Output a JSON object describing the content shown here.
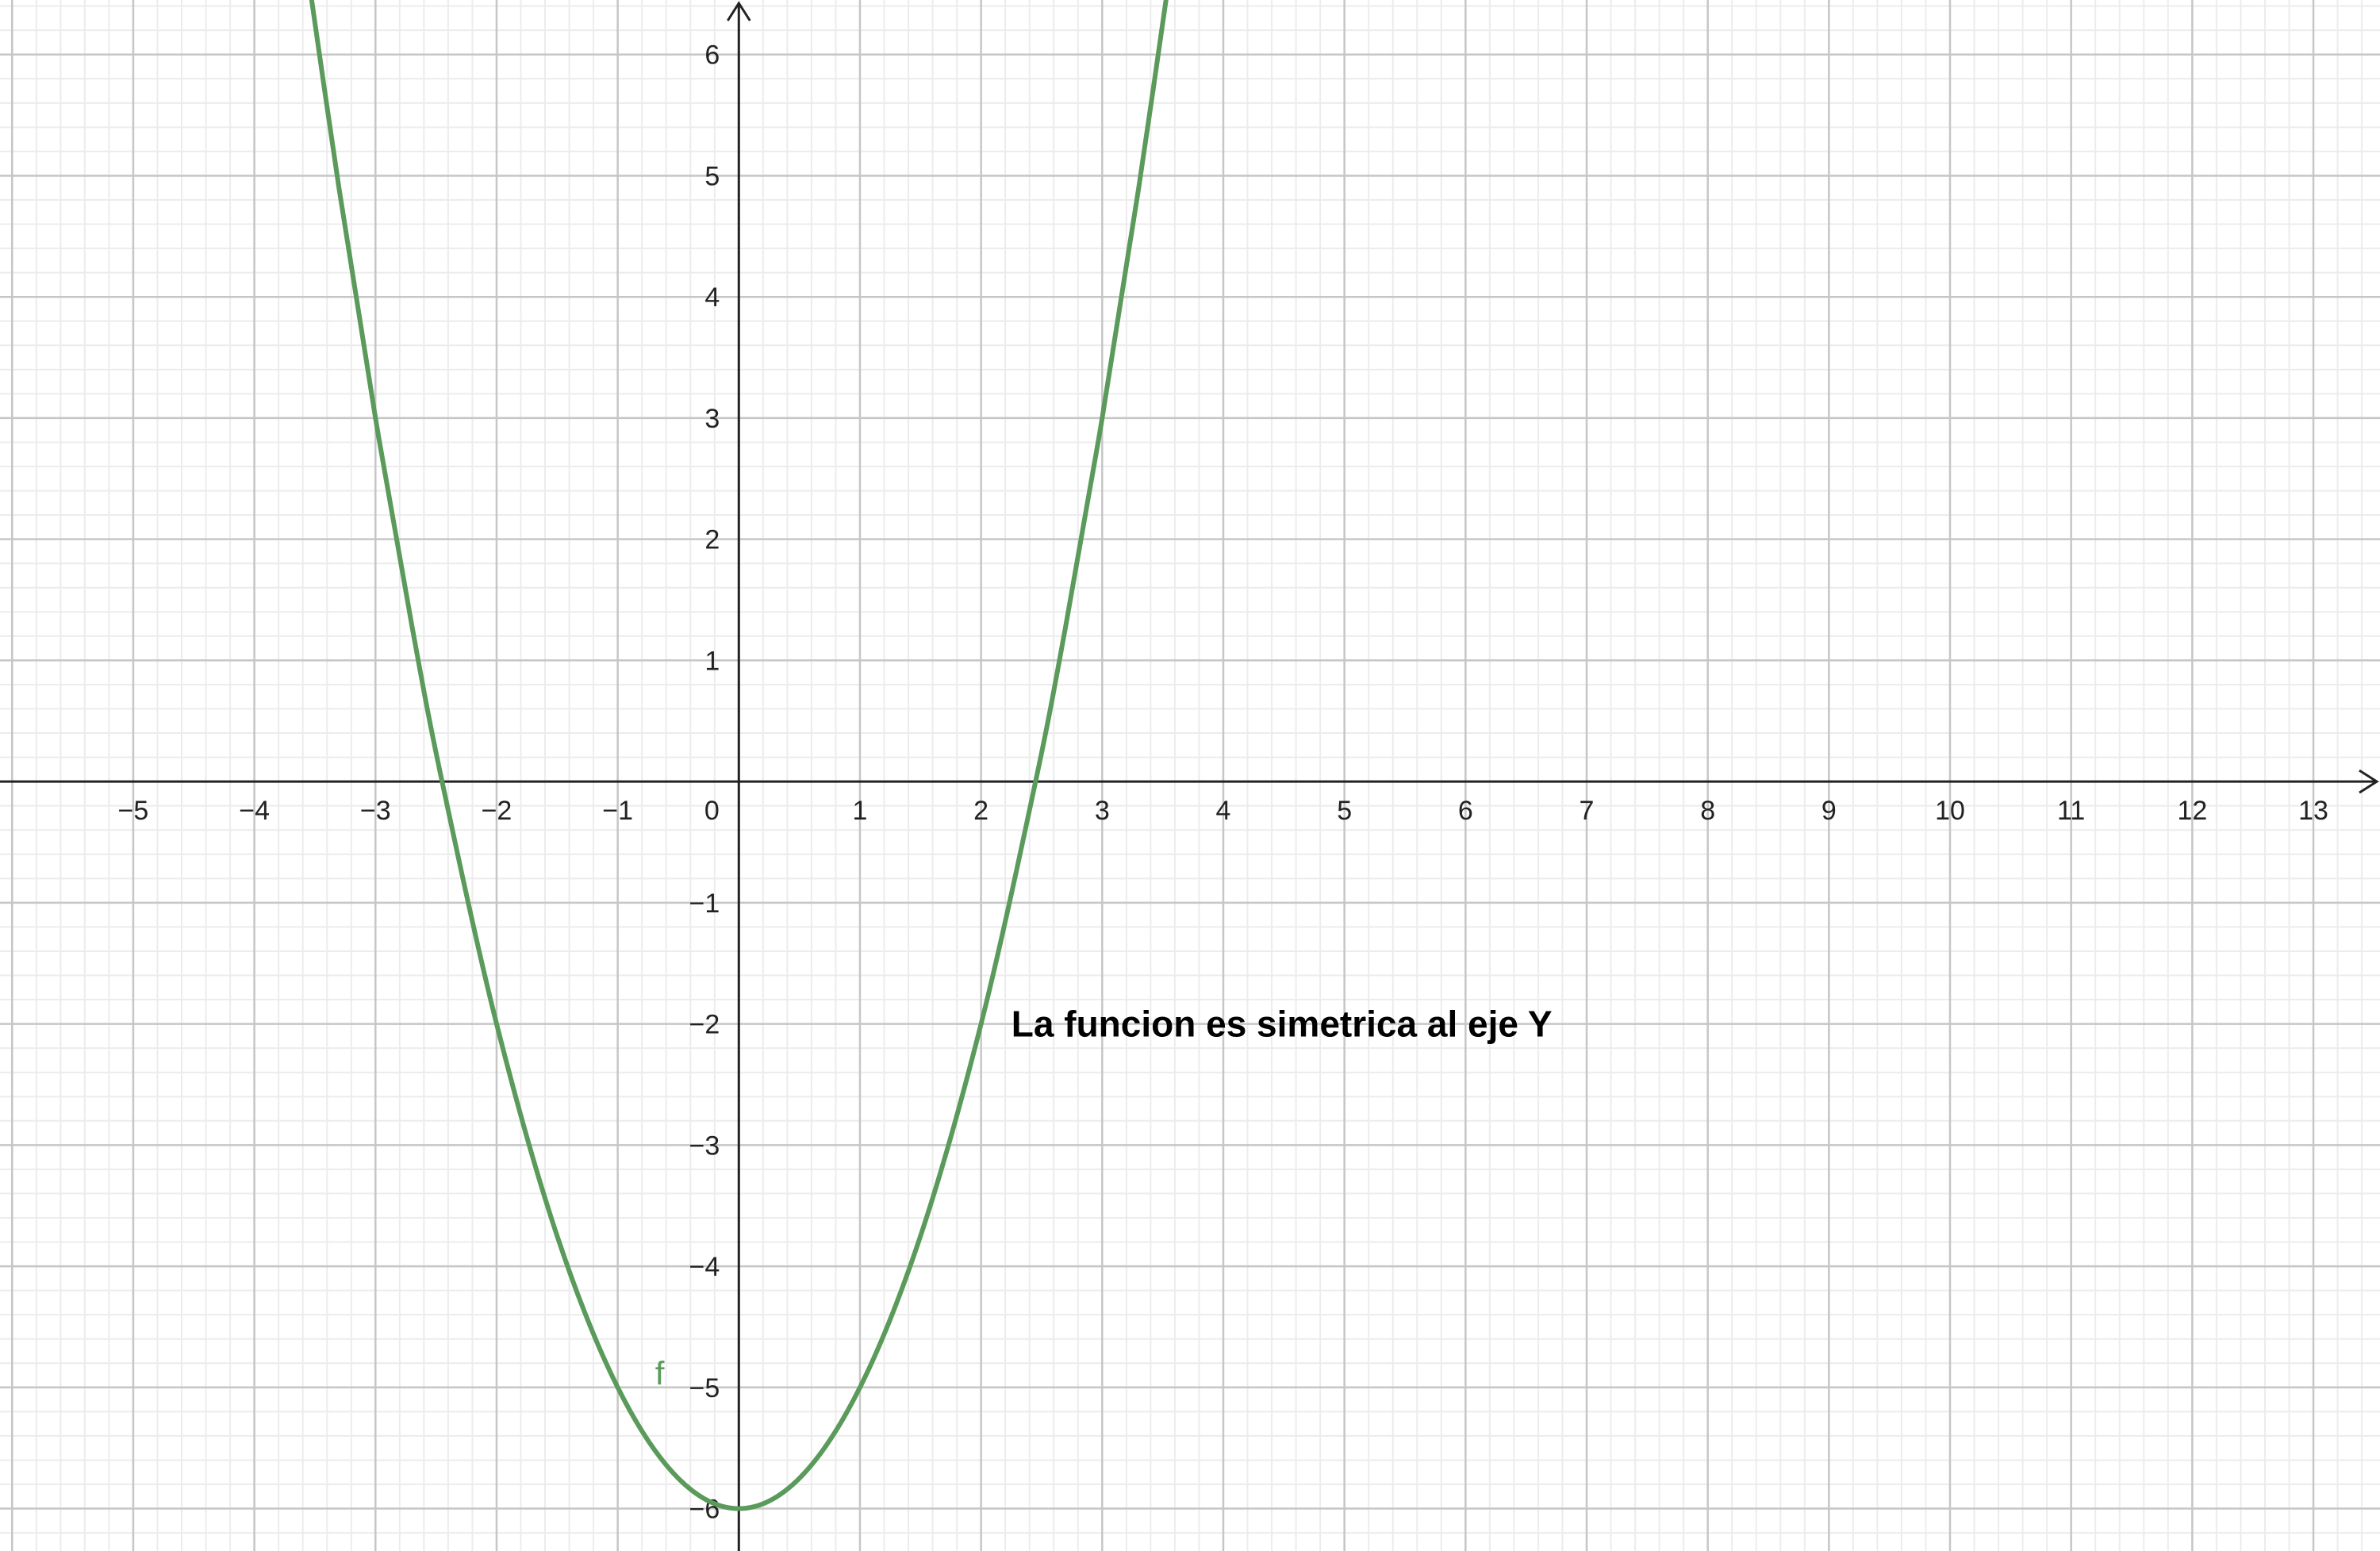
{
  "chart_data": {
    "type": "line",
    "title": "",
    "xlabel": "",
    "ylabel": "",
    "xlim": [
      -6.1,
      13.55
    ],
    "ylim": [
      -6.35,
      6.45
    ],
    "grid": true,
    "x_ticks": [
      -5,
      -4,
      -3,
      -2,
      -1,
      0,
      1,
      2,
      3,
      4,
      5,
      6,
      7,
      8,
      9,
      10,
      11,
      12,
      13
    ],
    "y_ticks": [
      -6,
      -5,
      -4,
      -3,
      -2,
      -1,
      1,
      2,
      3,
      4,
      5,
      6
    ],
    "x_tick_labels": [
      "−5",
      "−4",
      "−3",
      "−2",
      "−1",
      "0",
      "1",
      "2",
      "3",
      "4",
      "5",
      "6",
      "7",
      "8",
      "9",
      "10",
      "11",
      "12",
      "13"
    ],
    "y_tick_labels": [
      "−6",
      "−5",
      "−4",
      "−3",
      "−2",
      "−1",
      "1",
      "2",
      "3",
      "4",
      "5",
      "6"
    ],
    "series": [
      {
        "name": "f",
        "color": "#5a9a5a",
        "x": [
          -3.6,
          -3.3,
          -3,
          -2.7,
          -2.45,
          -2,
          -1.5,
          -1,
          -0.5,
          0,
          0.5,
          1,
          1.5,
          2,
          2.45,
          2.7,
          3,
          3.3,
          3.6
        ],
        "y": [
          6.96,
          4.89,
          3,
          1.29,
          0,
          -2,
          -3.75,
          -5,
          -5.75,
          -6,
          -5.75,
          -5,
          -3.75,
          -2,
          0,
          1.29,
          3,
          4.89,
          6.96
        ]
      }
    ],
    "curve_label": {
      "text": "f",
      "x": -0.6,
      "y": -4.9
    },
    "annotations": [
      {
        "text": "La funcion es simetrica al eje Y",
        "x": 2.25,
        "y": -2
      }
    ]
  }
}
